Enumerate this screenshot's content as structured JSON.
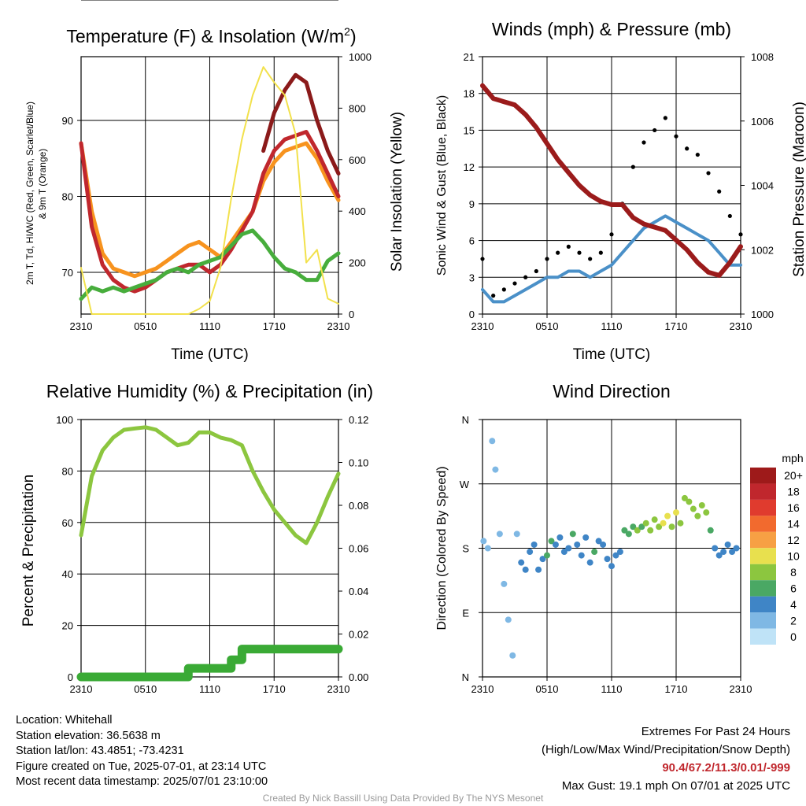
{
  "chart_data": [
    {
      "type": "line",
      "title": "Temperature (F) & Insolation (W/m²)",
      "title_main": "Temperature (F) & Insolation (W/m",
      "title_sup": "2",
      "title_close": ")",
      "ylabel_left_line1": "2m T, Td, HI/WC (Red, Green, Scarlet/Blue)",
      "ylabel_left_line2": "& 9m T (Orange)",
      "ylabel_right": "Solar Insolation (Yellow)",
      "xlabel": "Time (UTC)",
      "x_ticks": [
        "2310",
        "0510",
        "1110",
        "1710",
        "2310"
      ],
      "ylim": [
        64.5,
        98.4
      ],
      "y_ticks": [
        70,
        80,
        90
      ],
      "y2lim": [
        0,
        1000
      ],
      "y2_ticks": [
        0,
        200,
        400,
        600,
        800,
        1000
      ],
      "grid": true,
      "x_hours": [
        0,
        1,
        2,
        3,
        4,
        5,
        6,
        7,
        8,
        9,
        10,
        11,
        12,
        13,
        14,
        15,
        16,
        17,
        18,
        19,
        20,
        21,
        22,
        23,
        24
      ],
      "series": [
        {
          "color": "#f7931e",
          "axis": "left",
          "values": [
            87,
            78,
            72.5,
            70.5,
            70,
            69.5,
            70,
            70.5,
            71.5,
            72.5,
            73.5,
            74,
            73,
            72,
            74,
            76,
            78,
            82,
            84.5,
            86,
            86.5,
            87,
            85,
            82,
            79.5
          ]
        },
        {
          "color": "#c0272d",
          "axis": "left",
          "values": [
            87,
            76,
            71,
            69,
            68,
            67.5,
            68,
            69,
            70,
            70.5,
            71,
            71,
            70,
            71,
            73,
            75.5,
            78,
            83,
            86,
            87.5,
            88,
            88.5,
            86,
            83,
            80
          ]
        },
        {
          "color": "#8b1a1a",
          "axis": "left",
          "values": [
            null,
            null,
            null,
            null,
            null,
            null,
            null,
            null,
            null,
            null,
            null,
            null,
            null,
            null,
            null,
            null,
            null,
            86,
            91,
            94,
            96,
            95,
            90,
            86,
            83
          ]
        },
        {
          "color": "#47ad3c",
          "axis": "left",
          "values": [
            66.5,
            68,
            67.5,
            68,
            67.5,
            68,
            68.5,
            69,
            70,
            70.5,
            70,
            71,
            71.5,
            72,
            73.5,
            75,
            75.5,
            74,
            72,
            70.5,
            70,
            69,
            69,
            71.5,
            72.5
          ]
        },
        {
          "color": "#f2e14c",
          "axis": "right",
          "values": [
            180,
            0,
            0,
            0,
            0,
            0,
            0,
            0,
            0,
            0,
            0,
            20,
            50,
            180,
            450,
            680,
            850,
            960,
            900,
            850,
            700,
            200,
            250,
            60,
            40
          ]
        }
      ]
    },
    {
      "type": "line",
      "title": "Winds (mph) & Pressure (mb)",
      "ylabel_left": "Sonic Wind & Gust (Blue, Black)",
      "ylabel_right": "Station Pressure (Maroon)",
      "xlabel": "Time (UTC)",
      "x_ticks": [
        "2310",
        "0510",
        "1110",
        "1710",
        "2310"
      ],
      "ylim": [
        0,
        21
      ],
      "y_ticks": [
        0,
        3,
        6,
        9,
        12,
        15,
        18,
        21
      ],
      "y2lim": [
        1000,
        1008
      ],
      "y2_ticks": [
        1000,
        1002,
        1004,
        1006,
        1008
      ],
      "grid": true,
      "x_hours": [
        0,
        1,
        2,
        3,
        4,
        5,
        6,
        7,
        8,
        9,
        10,
        11,
        12,
        13,
        14,
        15,
        16,
        17,
        18,
        19,
        20,
        21,
        22,
        23,
        24
      ],
      "series": [
        {
          "color": "#4a90c8",
          "axis": "left",
          "values": [
            2,
            1,
            1,
            1.5,
            2,
            2.5,
            3,
            3,
            3.5,
            3.5,
            3,
            3.5,
            4,
            5,
            6,
            7,
            7.5,
            8,
            7.5,
            7,
            6.5,
            6,
            5,
            4,
            4
          ]
        },
        {
          "color": "#000000",
          "axis": "left",
          "marker": "dot",
          "values": [
            4.5,
            1.5,
            2,
            2.5,
            3,
            3.5,
            4.5,
            5,
            5.5,
            5,
            4.5,
            5,
            6.5,
            9,
            12,
            14,
            15,
            16,
            14.5,
            13.5,
            13,
            11.5,
            10,
            8,
            6.5
          ]
        },
        {
          "color": "#9b1b1b",
          "axis": "right",
          "values": [
            1007.1,
            1006.7,
            1006.6,
            1006.5,
            1006.2,
            1005.8,
            1005.3,
            1004.8,
            1004.4,
            1004.0,
            1003.7,
            1003.5,
            1003.4,
            1003.4,
            1003.0,
            1002.8,
            1002.7,
            1002.6,
            1002.3,
            1002.0,
            1001.6,
            1001.3,
            1001.2,
            1001.6,
            1002.1
          ]
        }
      ]
    },
    {
      "type": "line",
      "title": "Relative Humidity (%) & Precipitation (in)",
      "ylabel_left": "Percent & Precipitation",
      "x_ticks": [
        "2310",
        "0510",
        "1110",
        "1710",
        "2310"
      ],
      "ylim": [
        0,
        100
      ],
      "y_ticks": [
        0,
        20,
        40,
        60,
        80,
        100
      ],
      "y2lim": [
        0,
        0.12
      ],
      "y2_ticks": [
        "0.00",
        "0.02",
        "0.04",
        "0.06",
        "0.08",
        "0.10",
        "0.12"
      ],
      "grid": true,
      "x_hours": [
        0,
        1,
        2,
        3,
        4,
        5,
        6,
        7,
        8,
        9,
        10,
        11,
        12,
        13,
        14,
        15,
        16,
        17,
        18,
        19,
        20,
        21,
        22,
        23,
        24
      ],
      "series": [
        {
          "color": "#8cc63f",
          "axis": "left",
          "values": [
            55,
            78,
            88,
            93,
            96,
            96.5,
            97,
            96,
            93,
            90,
            91,
            95,
            95,
            93,
            92,
            90,
            80,
            72,
            65,
            60,
            55,
            52,
            60,
            70,
            79
          ]
        },
        {
          "color": "#3aaa35",
          "axis": "right",
          "values": [
            0,
            0,
            0,
            0,
            0,
            0,
            0,
            0,
            0,
            0,
            0.004,
            0.004,
            0.004,
            0.004,
            0.008,
            0.013,
            0.013,
            0.013,
            0.013,
            0.013,
            0.013,
            0.013,
            0.013,
            0.013,
            0.013
          ]
        }
      ]
    },
    {
      "type": "scatter",
      "title": "Wind Direction",
      "ylabel_left": "Direction (Colored By Speed)",
      "x_ticks": [
        "2310",
        "0510",
        "1110",
        "1710",
        "2310"
      ],
      "y_ticks": [
        "N",
        "E",
        "S",
        "W",
        "N"
      ],
      "ylim_degrees": [
        0,
        360
      ],
      "grid": true,
      "x_hours": [
        0.1,
        0.5,
        0.9,
        1.2,
        1.6,
        2.0,
        2.4,
        2.8,
        3.2,
        3.6,
        4.0,
        4.4,
        4.8,
        5.2,
        5.6,
        6.0,
        6.4,
        6.8,
        7.2,
        7.6,
        8.0,
        8.4,
        8.8,
        9.2,
        9.6,
        10.0,
        10.4,
        10.8,
        11.2,
        11.6,
        12.0,
        12.4,
        12.8,
        13.2,
        13.6,
        14.0,
        14.4,
        14.8,
        15.2,
        15.6,
        16.0,
        16.4,
        16.8,
        17.2,
        17.6,
        18.0,
        18.4,
        18.8,
        19.2,
        19.6,
        20.0,
        20.4,
        20.8,
        21.2,
        21.6,
        22.0,
        22.4,
        22.8,
        23.2,
        23.6
      ],
      "directions_deg": [
        190,
        180,
        330,
        290,
        200,
        130,
        80,
        30,
        200,
        160,
        150,
        175,
        185,
        150,
        165,
        170,
        190,
        185,
        195,
        175,
        180,
        200,
        185,
        170,
        195,
        160,
        175,
        190,
        185,
        165,
        155,
        170,
        175,
        205,
        200,
        210,
        205,
        210,
        215,
        205,
        220,
        210,
        215,
        225,
        210,
        230,
        215,
        250,
        245,
        235,
        225,
        240,
        230,
        205,
        180,
        170,
        175,
        185,
        175,
        180
      ],
      "speeds_mph": [
        1,
        2,
        1,
        1,
        2,
        2,
        1,
        1,
        2,
        3,
        4,
        3,
        4,
        3,
        4,
        5,
        5,
        4,
        4,
        4,
        4,
        5,
        4,
        3,
        4,
        4,
        5,
        4,
        4,
        4,
        4,
        3,
        4,
        5,
        5,
        6,
        7,
        6,
        7,
        8,
        7,
        8,
        9,
        9,
        8,
        10,
        7,
        7,
        8,
        7,
        7,
        8,
        7,
        6,
        4,
        4,
        3,
        4,
        4,
        4
      ],
      "colorbar_unit": "mph",
      "colorbar_labels": [
        "20+",
        "18",
        "16",
        "14",
        "12",
        "10",
        "8",
        "6",
        "4",
        "2",
        "0"
      ],
      "colorbar_colors": [
        "#9e1a1a",
        "#c0272d",
        "#e03b2e",
        "#f26a2e",
        "#f7a044",
        "#e8e04e",
        "#8cc63f",
        "#4aa864",
        "#3f85c6",
        "#7fb8e4",
        "#bfe3f7"
      ]
    }
  ],
  "info": {
    "location": "Location: Whitehall",
    "elevation": "Station elevation: 36.5638 m",
    "latlon": "Station lat/lon: 43.4851; -73.4231",
    "created": "Figure created on Tue, 2025-07-01, at 23:14 UTC",
    "recent": "Most recent data timestamp: 2025/07/01 23:10:00"
  },
  "extremes": {
    "heading": "Extremes For Past 24 Hours",
    "legend": "(High/Low/Max Wind/Precipitation/Snow Depth)",
    "values": "90.4/67.2/11.3/0.01/-999",
    "gust": "Max Gust: 19.1 mph On 07/01 at 2025 UTC"
  },
  "credit": "Created By Nick Bassill Using Data Provided By The NYS Mesonet"
}
